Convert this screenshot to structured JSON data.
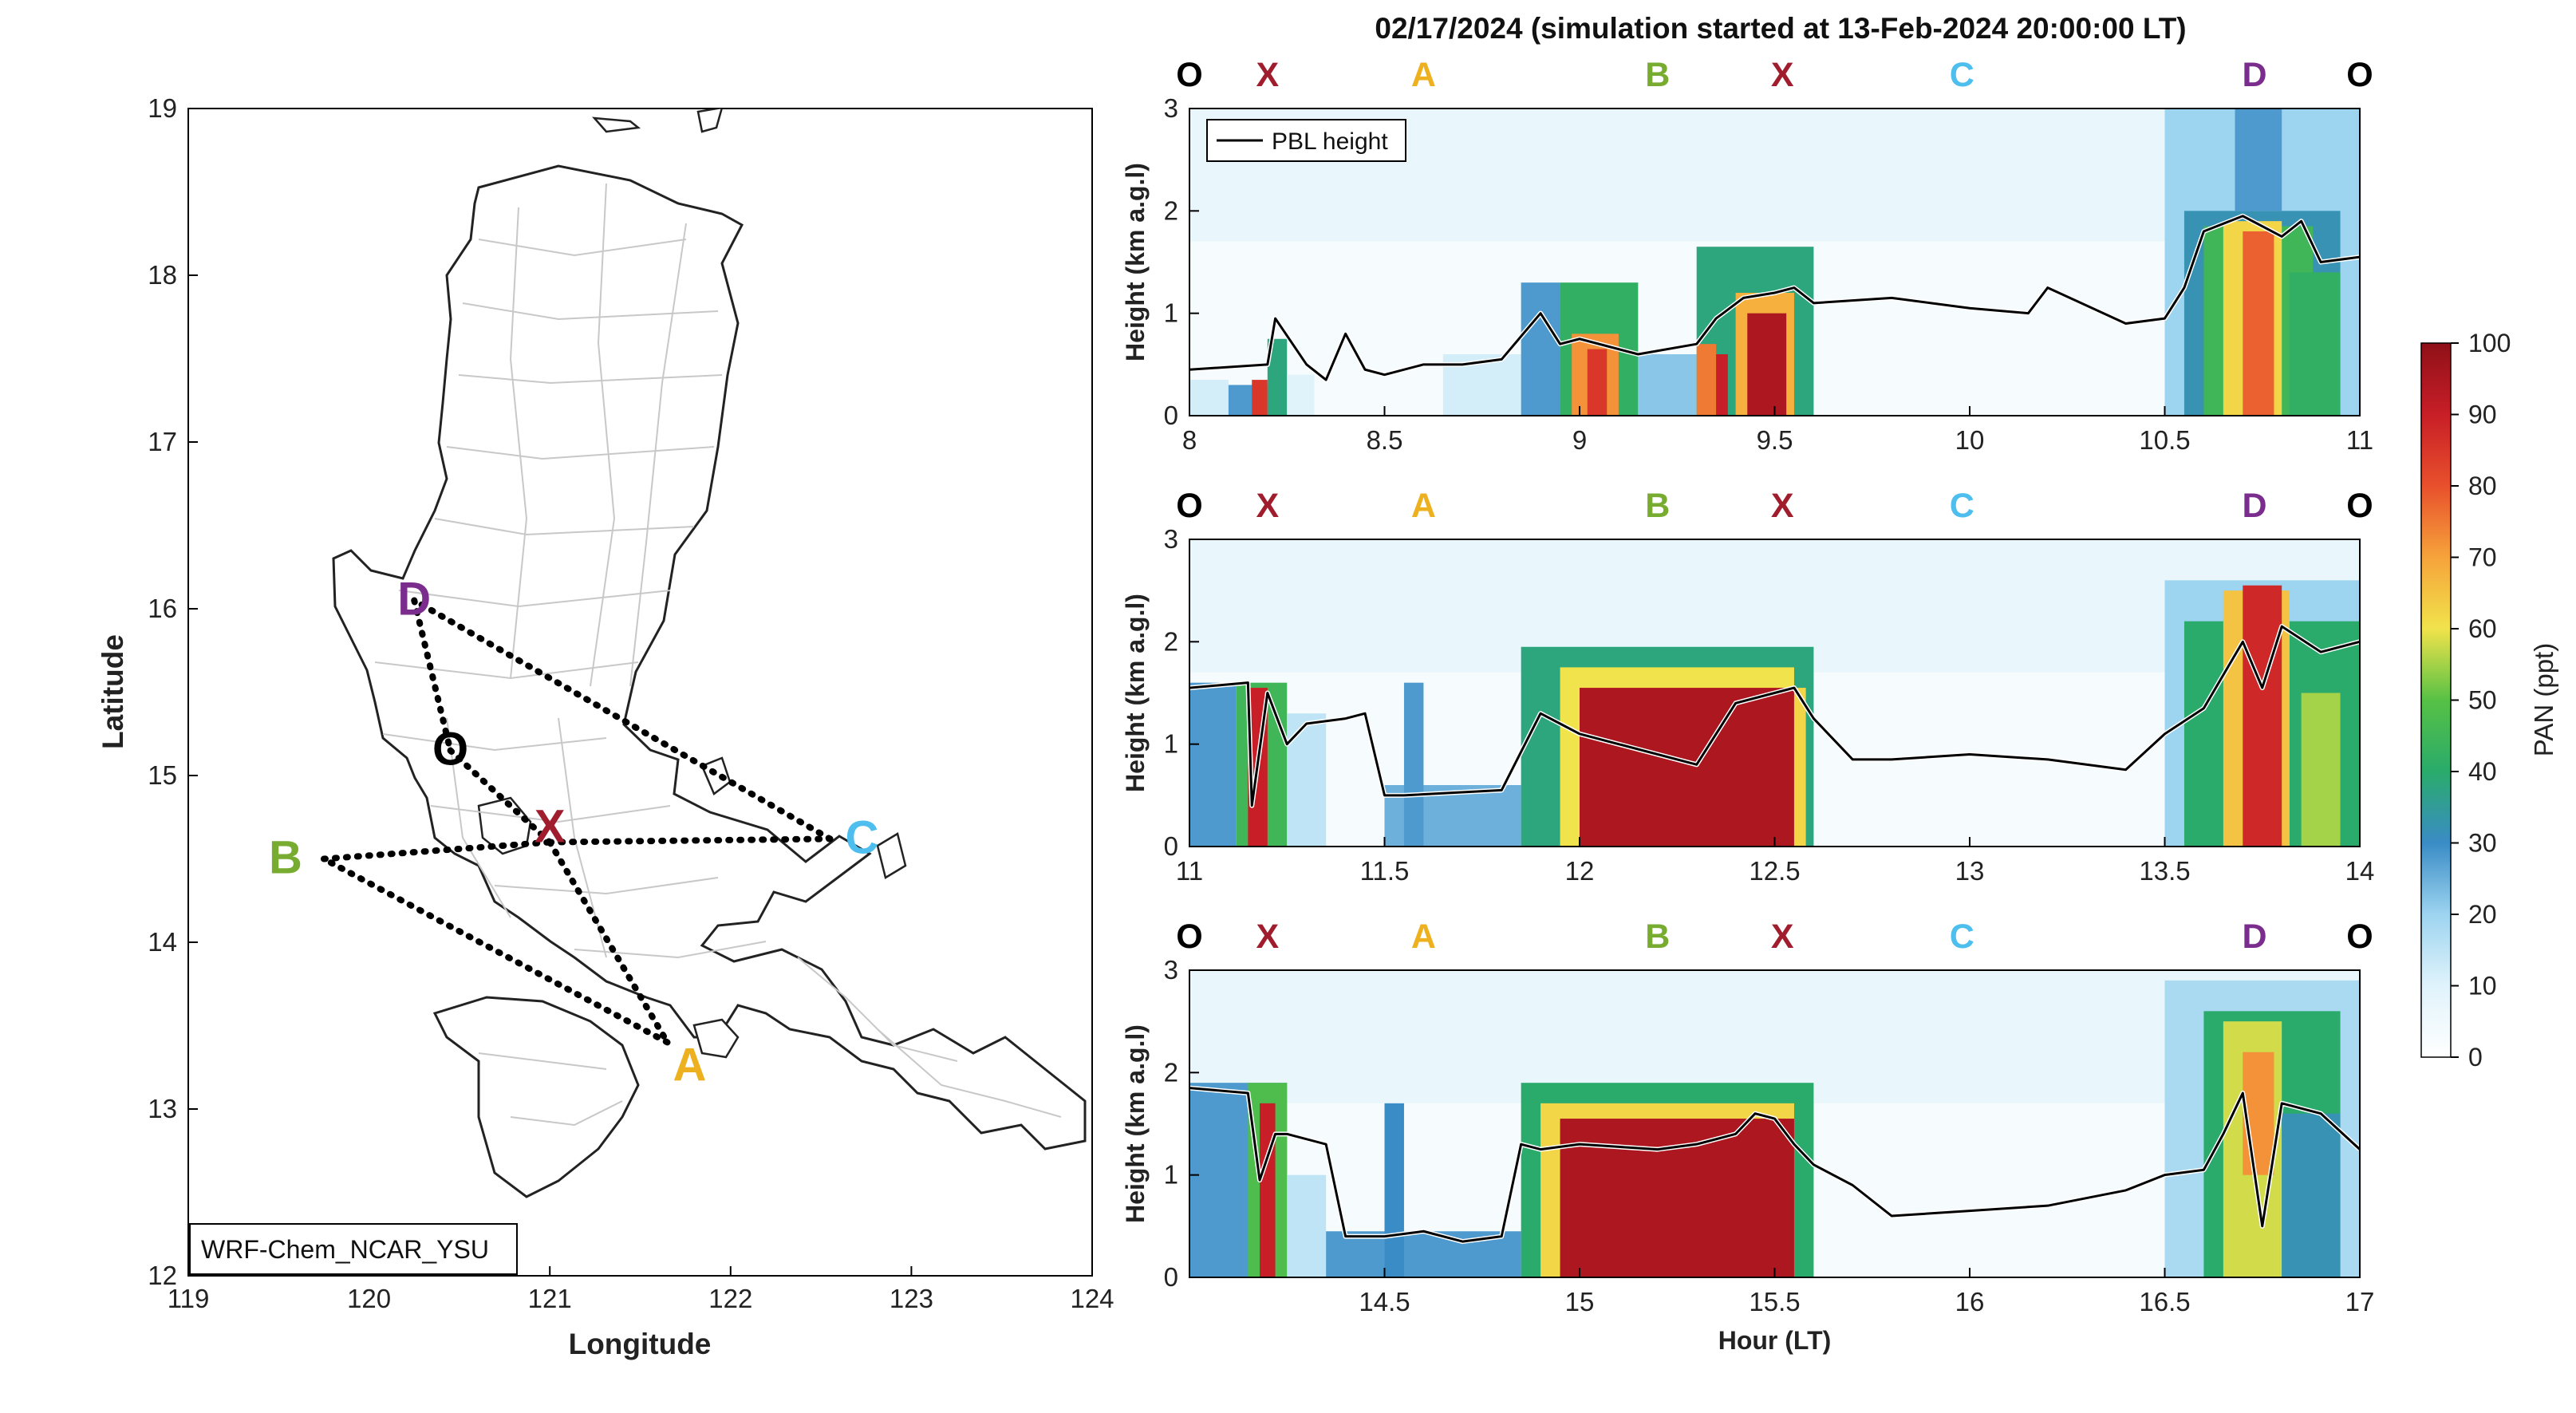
{
  "figure": {
    "title": "02/17/2024 (simulation started at 13-Feb-2024 20:00:00 LT)"
  },
  "map": {
    "xlabel": "Longitude",
    "ylabel": "Latitude",
    "xticks": [
      119,
      120,
      121,
      122,
      123,
      124
    ],
    "yticks": [
      12,
      13,
      14,
      15,
      16,
      17,
      18,
      19
    ],
    "xlim": [
      119,
      124
    ],
    "ylim": [
      12,
      19
    ],
    "model_label": "WRF-Chem_NCAR_YSU",
    "sites": [
      {
        "name": "D",
        "lon": 120.25,
        "lat": 16.05,
        "color": "#7b2d8e"
      },
      {
        "name": "O",
        "lon": 120.45,
        "lat": 15.15,
        "color": "#000000"
      },
      {
        "name": "X",
        "lon": 121.0,
        "lat": 14.6,
        "color": "#a01d2e"
      },
      {
        "name": "B",
        "lon": 119.75,
        "lat": 14.5,
        "color": "#77ac30"
      },
      {
        "name": "C",
        "lon": 122.55,
        "lat": 14.62,
        "color": "#4dbeee"
      },
      {
        "name": "A",
        "lon": 121.65,
        "lat": 13.4,
        "color": "#edb120"
      }
    ],
    "route": [
      "O",
      "X",
      "A",
      "B",
      "X",
      "C",
      "D",
      "O"
    ]
  },
  "colorbar": {
    "label": "PAN (ppt)",
    "ticks": [
      0,
      10,
      20,
      30,
      40,
      50,
      60,
      70,
      80,
      90,
      100
    ],
    "range": [
      0,
      100
    ]
  },
  "chart_data": [
    {
      "type": "heatmap",
      "xlim": [
        8,
        11
      ],
      "xticks": [
        8,
        8.5,
        9,
        9.5,
        10,
        10.5,
        11
      ],
      "ylim": [
        0,
        3
      ],
      "yticks": [
        0,
        1,
        2,
        3
      ],
      "ylabel": "Height (km a.g.l)",
      "xlabel": "",
      "legend": {
        "entry": "PBL height",
        "position": "top-left"
      },
      "site_labels": [
        {
          "name": "O",
          "x": 8.0,
          "color": "#000000"
        },
        {
          "name": "X",
          "x": 8.2,
          "color": "#a01d2e"
        },
        {
          "name": "A",
          "x": 8.6,
          "color": "#edb120"
        },
        {
          "name": "B",
          "x": 9.2,
          "color": "#77ac30"
        },
        {
          "name": "X",
          "x": 9.52,
          "color": "#a01d2e"
        },
        {
          "name": "C",
          "x": 9.98,
          "color": "#4dbeee"
        },
        {
          "name": "D",
          "x": 10.73,
          "color": "#7b2d8e"
        },
        {
          "name": "O",
          "x": 11.0,
          "color": "#000000"
        }
      ],
      "pan_blocks": [
        {
          "x": [
            8.0,
            8.1
          ],
          "y": [
            0.0,
            0.35
          ],
          "v": 12
        },
        {
          "x": [
            8.1,
            8.2
          ],
          "y": [
            0.0,
            0.3
          ],
          "v": 28
        },
        {
          "x": [
            8.16,
            8.2
          ],
          "y": [
            0.0,
            0.35
          ],
          "v": 85
        },
        {
          "x": [
            8.2,
            8.25
          ],
          "y": [
            0.0,
            0.75
          ],
          "v": 38
        },
        {
          "x": [
            8.25,
            8.32
          ],
          "y": [
            0.0,
            0.4
          ],
          "v": 10
        },
        {
          "x": [
            8.65,
            8.85
          ],
          "y": [
            0.0,
            0.6
          ],
          "v": 12
        },
        {
          "x": [
            8.85,
            8.95
          ],
          "y": [
            0.0,
            1.3
          ],
          "v": 28
        },
        {
          "x": [
            8.95,
            9.15
          ],
          "y": [
            0.0,
            1.3
          ],
          "v": 42
        },
        {
          "x": [
            8.98,
            9.1
          ],
          "y": [
            0.0,
            0.8
          ],
          "v": 72
        },
        {
          "x": [
            9.02,
            9.07
          ],
          "y": [
            0.0,
            0.65
          ],
          "v": 85
        },
        {
          "x": [
            9.15,
            9.3
          ],
          "y": [
            0.0,
            0.6
          ],
          "v": 22
        },
        {
          "x": [
            9.3,
            9.6
          ],
          "y": [
            0.0,
            1.65
          ],
          "v": 38
        },
        {
          "x": [
            9.3,
            9.35
          ],
          "y": [
            0.0,
            0.7
          ],
          "v": 75
        },
        {
          "x": [
            9.35,
            9.38
          ],
          "y": [
            0.0,
            0.6
          ],
          "v": 90
        },
        {
          "x": [
            9.4,
            9.55
          ],
          "y": [
            0.0,
            1.2
          ],
          "v": 68
        },
        {
          "x": [
            9.43,
            9.53
          ],
          "y": [
            0.0,
            1.0
          ],
          "v": 95
        },
        {
          "x": [
            10.5,
            11.0
          ],
          "y": [
            0.0,
            3.0
          ],
          "v": 20
        },
        {
          "x": [
            10.55,
            10.95
          ],
          "y": [
            0.0,
            2.0
          ],
          "v": 32
        },
        {
          "x": [
            10.6,
            10.88
          ],
          "y": [
            0.0,
            1.85
          ],
          "v": 45
        },
        {
          "x": [
            10.65,
            10.8
          ],
          "y": [
            0.0,
            1.9
          ],
          "v": 62
        },
        {
          "x": [
            10.7,
            10.78
          ],
          "y": [
            0.0,
            1.8
          ],
          "v": 78
        },
        {
          "x": [
            10.82,
            10.95
          ],
          "y": [
            0.0,
            1.4
          ],
          "v": 42
        },
        {
          "x": [
            10.68,
            10.8
          ],
          "y": [
            2.0,
            3.0
          ],
          "v": 28
        }
      ],
      "pbl": {
        "x": [
          8.0,
          8.2,
          8.22,
          8.3,
          8.35,
          8.4,
          8.45,
          8.5,
          8.6,
          8.7,
          8.8,
          8.9,
          8.95,
          9.0,
          9.15,
          9.3,
          9.35,
          9.42,
          9.5,
          9.55,
          9.6,
          9.8,
          10.0,
          10.15,
          10.2,
          10.4,
          10.5,
          10.55,
          10.6,
          10.7,
          10.8,
          10.85,
          10.9,
          11.0
        ],
        "y": [
          0.45,
          0.5,
          0.95,
          0.5,
          0.35,
          0.8,
          0.45,
          0.4,
          0.5,
          0.5,
          0.55,
          1.0,
          0.7,
          0.75,
          0.6,
          0.7,
          0.95,
          1.15,
          1.2,
          1.25,
          1.1,
          1.15,
          1.05,
          1.0,
          1.25,
          0.9,
          0.95,
          1.25,
          1.8,
          1.95,
          1.75,
          1.9,
          1.5,
          1.55
        ]
      }
    },
    {
      "type": "heatmap",
      "xlim": [
        11,
        14
      ],
      "xticks": [
        11,
        11.5,
        12,
        12.5,
        13,
        13.5,
        14
      ],
      "ylim": [
        0,
        3
      ],
      "yticks": [
        0,
        1,
        2,
        3
      ],
      "ylabel": "Height (km a.g.l)",
      "xlabel": "",
      "site_labels": [
        {
          "name": "O",
          "x": 11.0,
          "color": "#000000"
        },
        {
          "name": "X",
          "x": 11.2,
          "color": "#a01d2e"
        },
        {
          "name": "A",
          "x": 11.6,
          "color": "#edb120"
        },
        {
          "name": "B",
          "x": 12.2,
          "color": "#77ac30"
        },
        {
          "name": "X",
          "x": 12.52,
          "color": "#a01d2e"
        },
        {
          "name": "C",
          "x": 12.98,
          "color": "#4dbeee"
        },
        {
          "name": "D",
          "x": 13.73,
          "color": "#7b2d8e"
        },
        {
          "name": "O",
          "x": 14.0,
          "color": "#000000"
        }
      ],
      "pan_blocks": [
        {
          "x": [
            11.0,
            11.12
          ],
          "y": [
            0.0,
            1.6
          ],
          "v": 28
        },
        {
          "x": [
            11.12,
            11.25
          ],
          "y": [
            0.0,
            1.6
          ],
          "v": 45
        },
        {
          "x": [
            11.15,
            11.2
          ],
          "y": [
            0.0,
            1.55
          ],
          "v": 90
        },
        {
          "x": [
            11.25,
            11.35
          ],
          "y": [
            0.0,
            1.3
          ],
          "v": 15
        },
        {
          "x": [
            11.5,
            11.85
          ],
          "y": [
            0.0,
            0.6
          ],
          "v": 25
        },
        {
          "x": [
            11.55,
            11.6
          ],
          "y": [
            0.0,
            1.6
          ],
          "v": 28
        },
        {
          "x": [
            11.85,
            12.6
          ],
          "y": [
            0.0,
            1.95
          ],
          "v": 38
        },
        {
          "x": [
            11.95,
            12.55
          ],
          "y": [
            0.0,
            1.75
          ],
          "v": 60
        },
        {
          "x": [
            12.0,
            12.55
          ],
          "y": [
            0.0,
            1.55
          ],
          "v": 95
        },
        {
          "x": [
            12.55,
            12.58
          ],
          "y": [
            0.0,
            1.55
          ],
          "v": 62
        },
        {
          "x": [
            13.5,
            14.0
          ],
          "y": [
            0.0,
            2.6
          ],
          "v": 20
        },
        {
          "x": [
            13.55,
            14.0
          ],
          "y": [
            0.0,
            2.2
          ],
          "v": 40
        },
        {
          "x": [
            13.65,
            13.82
          ],
          "y": [
            0.0,
            2.5
          ],
          "v": 65
        },
        {
          "x": [
            13.7,
            13.8
          ],
          "y": [
            0.0,
            2.55
          ],
          "v": 88
        },
        {
          "x": [
            13.85,
            13.95
          ],
          "y": [
            0.0,
            1.5
          ],
          "v": 55
        }
      ],
      "pbl": {
        "x": [
          11.0,
          11.15,
          11.16,
          11.2,
          11.25,
          11.3,
          11.4,
          11.45,
          11.5,
          11.55,
          11.8,
          11.9,
          11.95,
          12.0,
          12.1,
          12.3,
          12.4,
          12.5,
          12.55,
          12.6,
          12.7,
          12.8,
          13.0,
          13.2,
          13.4,
          13.5,
          13.6,
          13.7,
          13.75,
          13.8,
          13.9,
          14.0
        ],
        "y": [
          1.55,
          1.6,
          0.4,
          1.5,
          1.0,
          1.2,
          1.25,
          1.3,
          0.5,
          0.5,
          0.55,
          1.3,
          1.2,
          1.1,
          1.0,
          0.8,
          1.4,
          1.5,
          1.55,
          1.25,
          0.85,
          0.85,
          0.9,
          0.85,
          0.75,
          1.1,
          1.35,
          2.0,
          1.55,
          2.15,
          1.9,
          2.0
        ]
      }
    },
    {
      "type": "heatmap",
      "xlim": [
        14,
        17
      ],
      "xticks": [
        14.5,
        15,
        15.5,
        16,
        16.5,
        17
      ],
      "ylim": [
        0,
        3
      ],
      "yticks": [
        0,
        1,
        2,
        3
      ],
      "ylabel": "Height (km a.g.l)",
      "xlabel": "Hour (LT)",
      "site_labels": [
        {
          "name": "O",
          "x": 14.0,
          "color": "#000000"
        },
        {
          "name": "X",
          "x": 14.2,
          "color": "#a01d2e"
        },
        {
          "name": "A",
          "x": 14.6,
          "color": "#edb120"
        },
        {
          "name": "B",
          "x": 15.2,
          "color": "#77ac30"
        },
        {
          "name": "X",
          "x": 15.52,
          "color": "#a01d2e"
        },
        {
          "name": "C",
          "x": 15.98,
          "color": "#4dbeee"
        },
        {
          "name": "D",
          "x": 16.73,
          "color": "#7b2d8e"
        },
        {
          "name": "O",
          "x": 17.0,
          "color": "#000000"
        }
      ],
      "pan_blocks": [
        {
          "x": [
            14.0,
            14.25
          ],
          "y": [
            0.0,
            1.9
          ],
          "v": 28
        },
        {
          "x": [
            14.15,
            14.25
          ],
          "y": [
            0.0,
            1.9
          ],
          "v": 48
        },
        {
          "x": [
            14.18,
            14.22
          ],
          "y": [
            0.0,
            1.7
          ],
          "v": 90
        },
        {
          "x": [
            14.25,
            14.35
          ],
          "y": [
            0.0,
            1.0
          ],
          "v": 15
        },
        {
          "x": [
            14.35,
            14.85
          ],
          "y": [
            0.0,
            0.45
          ],
          "v": 28
        },
        {
          "x": [
            14.5,
            14.55
          ],
          "y": [
            0.0,
            1.7
          ],
          "v": 30
        },
        {
          "x": [
            14.85,
            15.6
          ],
          "y": [
            0.0,
            1.9
          ],
          "v": 40
        },
        {
          "x": [
            14.9,
            15.55
          ],
          "y": [
            0.0,
            1.7
          ],
          "v": 62
        },
        {
          "x": [
            14.95,
            15.55
          ],
          "y": [
            0.0,
            1.55
          ],
          "v": 95
        },
        {
          "x": [
            16.5,
            17.0
          ],
          "y": [
            0.0,
            2.9
          ],
          "v": 18
        },
        {
          "x": [
            16.6,
            16.95
          ],
          "y": [
            0.0,
            2.6
          ],
          "v": 40
        },
        {
          "x": [
            16.65,
            16.8
          ],
          "y": [
            0.0,
            2.5
          ],
          "v": 58
        },
        {
          "x": [
            16.7,
            16.78
          ],
          "y": [
            1.0,
            2.2
          ],
          "v": 72
        },
        {
          "x": [
            16.8,
            16.95
          ],
          "y": [
            0.0,
            1.6
          ],
          "v": 32
        }
      ],
      "pbl": {
        "x": [
          14.0,
          14.15,
          14.18,
          14.22,
          14.25,
          14.35,
          14.4,
          14.5,
          14.6,
          14.7,
          14.8,
          14.85,
          14.9,
          15.0,
          15.2,
          15.3,
          15.4,
          15.45,
          15.5,
          15.55,
          15.6,
          15.7,
          15.8,
          16.0,
          16.2,
          16.4,
          16.5,
          16.6,
          16.65,
          16.7,
          16.75,
          16.8,
          16.9,
          17.0
        ],
        "y": [
          1.85,
          1.8,
          0.95,
          1.4,
          1.4,
          1.3,
          0.4,
          0.4,
          0.45,
          0.35,
          0.4,
          1.3,
          1.25,
          1.3,
          1.25,
          1.3,
          1.4,
          1.6,
          1.55,
          1.3,
          1.1,
          0.9,
          0.6,
          0.65,
          0.7,
          0.85,
          1.0,
          1.05,
          1.4,
          1.8,
          0.5,
          1.7,
          1.6,
          1.25
        ]
      }
    }
  ]
}
